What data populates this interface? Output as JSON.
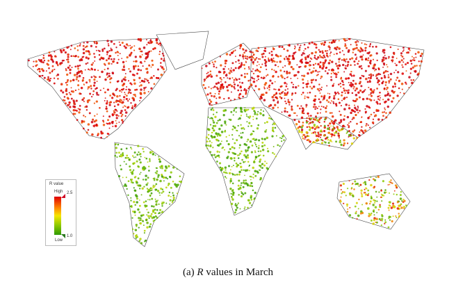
{
  "figure": {
    "caption_label": "(a)",
    "caption_var": "R",
    "caption_text": "values in March"
  },
  "legend": {
    "title": "R value",
    "high_label": "High",
    "low_label": "Low",
    "max_value": "2.5",
    "min_value": "1.0",
    "colors": [
      "#e00000",
      "#ff8a00",
      "#f5e600",
      "#8cc800",
      "#2f9a00"
    ]
  },
  "map": {
    "type": "world dot map",
    "regions": [
      {
        "name": "north-america",
        "level": "high"
      },
      {
        "name": "greenland",
        "level": "none"
      },
      {
        "name": "south-america",
        "level": "low"
      },
      {
        "name": "europe",
        "level": "high"
      },
      {
        "name": "africa",
        "level": "low"
      },
      {
        "name": "asia",
        "level": "high"
      },
      {
        "name": "south-asia",
        "level": "mixed"
      },
      {
        "name": "oceania",
        "level": "mixed"
      }
    ]
  }
}
